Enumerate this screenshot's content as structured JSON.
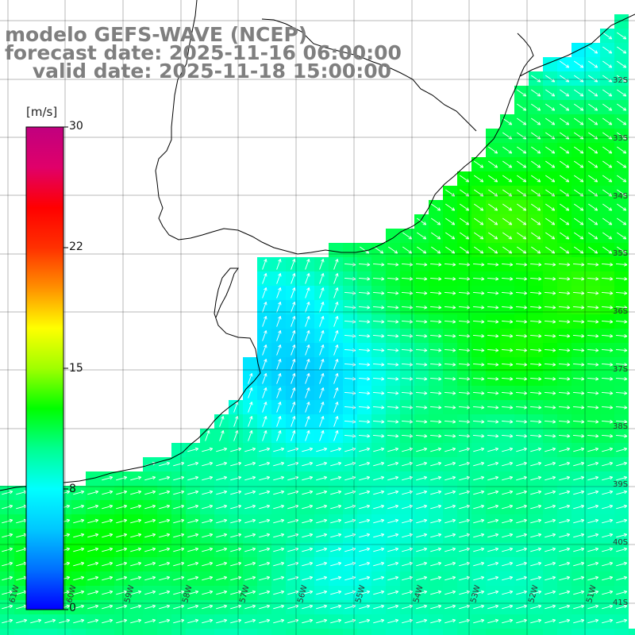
{
  "title": {
    "line1": "modelo GEFS-WAVE (NCEP)",
    "line2": "forecast date: 2025-11-16 06:00:00",
    "line3": "    valid date: 2025-11-18 15:00:00"
  },
  "colorbar": {
    "unit": "[m/s]",
    "ticks": [
      "30",
      "22",
      "15",
      "8",
      "0"
    ],
    "min": 0,
    "max": 30,
    "colors": [
      "#0000ff",
      "#0070ff",
      "#00c8ff",
      "#00ffff",
      "#00ff90",
      "#00ff00",
      "#a0ff00",
      "#ffff00",
      "#ff9000",
      "#ff3000",
      "#ff0000",
      "#e0006a",
      "#c0007f"
    ]
  },
  "lon_labels": [
    "61W",
    "60W",
    "59W",
    "58W",
    "57W",
    "56W",
    "55W",
    "54W",
    "53W",
    "52W",
    "51W"
  ],
  "lat_labels": [
    "32S",
    "33S",
    "34S",
    "35S",
    "36S",
    "37S",
    "38S",
    "39S",
    "40S",
    "41S"
  ],
  "map_colors": {
    "land": "#ffffff",
    "coast": "#000000",
    "grid": "#000000",
    "arrow": "#ffffff"
  }
}
